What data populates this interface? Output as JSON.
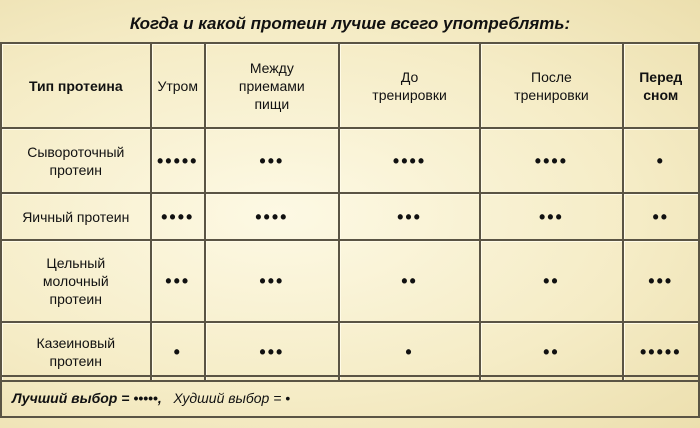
{
  "title": "Когда и какой протеин лучше всего употреблять:",
  "headers": [
    "Тип протеина",
    "Утром",
    "Между приемами пищи",
    "До тренировки",
    "После тренировки",
    "Перед сном"
  ],
  "rows": [
    {
      "type": "Сывороточный протеин",
      "cells": [
        "•••••",
        "•••",
        "••••",
        "••••",
        "•"
      ]
    },
    {
      "type": "Яичный протеин",
      "cells": [
        "••••",
        "••••",
        "•••",
        "•••",
        "••"
      ]
    },
    {
      "type": "Цельный молочный протеин",
      "cells": [
        "•••",
        "•••",
        "••",
        "••",
        "•••"
      ]
    },
    {
      "type": "Казеиновый протеин",
      "cells": [
        "•",
        "•••",
        "•",
        "••",
        "•••••"
      ]
    }
  ],
  "legend": {
    "best": "Лучший выбор = •••••,",
    "worst": "Худший выбор = •"
  }
}
